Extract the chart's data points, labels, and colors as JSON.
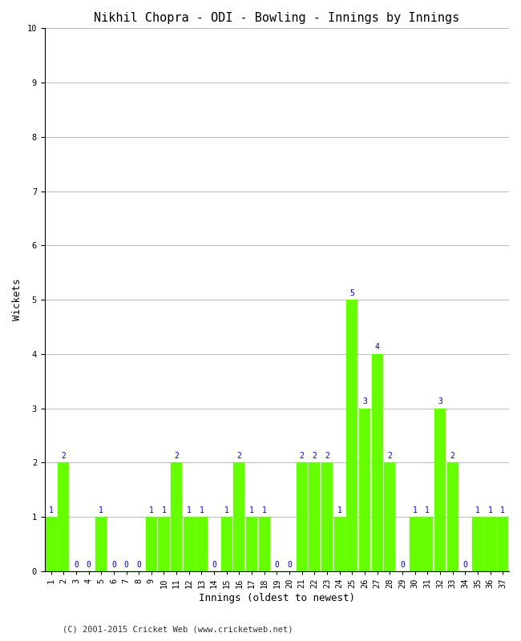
{
  "title": "Nikhil Chopra - ODI - Bowling - Innings by Innings",
  "xlabel": "Innings (oldest to newest)",
  "ylabel": "Wickets",
  "innings": [
    1,
    2,
    3,
    4,
    5,
    6,
    7,
    8,
    9,
    10,
    11,
    12,
    13,
    14,
    15,
    16,
    17,
    18,
    19,
    20,
    21,
    22,
    23,
    24,
    25,
    26,
    27,
    28,
    29,
    30,
    31,
    32,
    33,
    34,
    35,
    36,
    37
  ],
  "wickets": [
    1,
    2,
    0,
    0,
    1,
    0,
    0,
    0,
    1,
    1,
    2,
    1,
    1,
    0,
    1,
    2,
    1,
    1,
    0,
    0,
    2,
    2,
    2,
    1,
    5,
    3,
    4,
    2,
    0,
    1,
    1,
    3,
    2,
    0,
    1,
    1,
    1
  ],
  "bar_color": "#66ff00",
  "bar_edge_color": "#66ff00",
  "label_color": "#0000cc",
  "background_color": "#ffffff",
  "grid_color": "#bbbbbb",
  "ylim": [
    0,
    10
  ],
  "yticks": [
    0,
    1,
    2,
    3,
    4,
    5,
    6,
    7,
    8,
    9,
    10
  ],
  "title_fontsize": 11,
  "axis_label_fontsize": 9,
  "tick_fontsize": 7.5,
  "bar_label_fontsize": 7,
  "footer": "(C) 2001-2015 Cricket Web (www.cricketweb.net)"
}
